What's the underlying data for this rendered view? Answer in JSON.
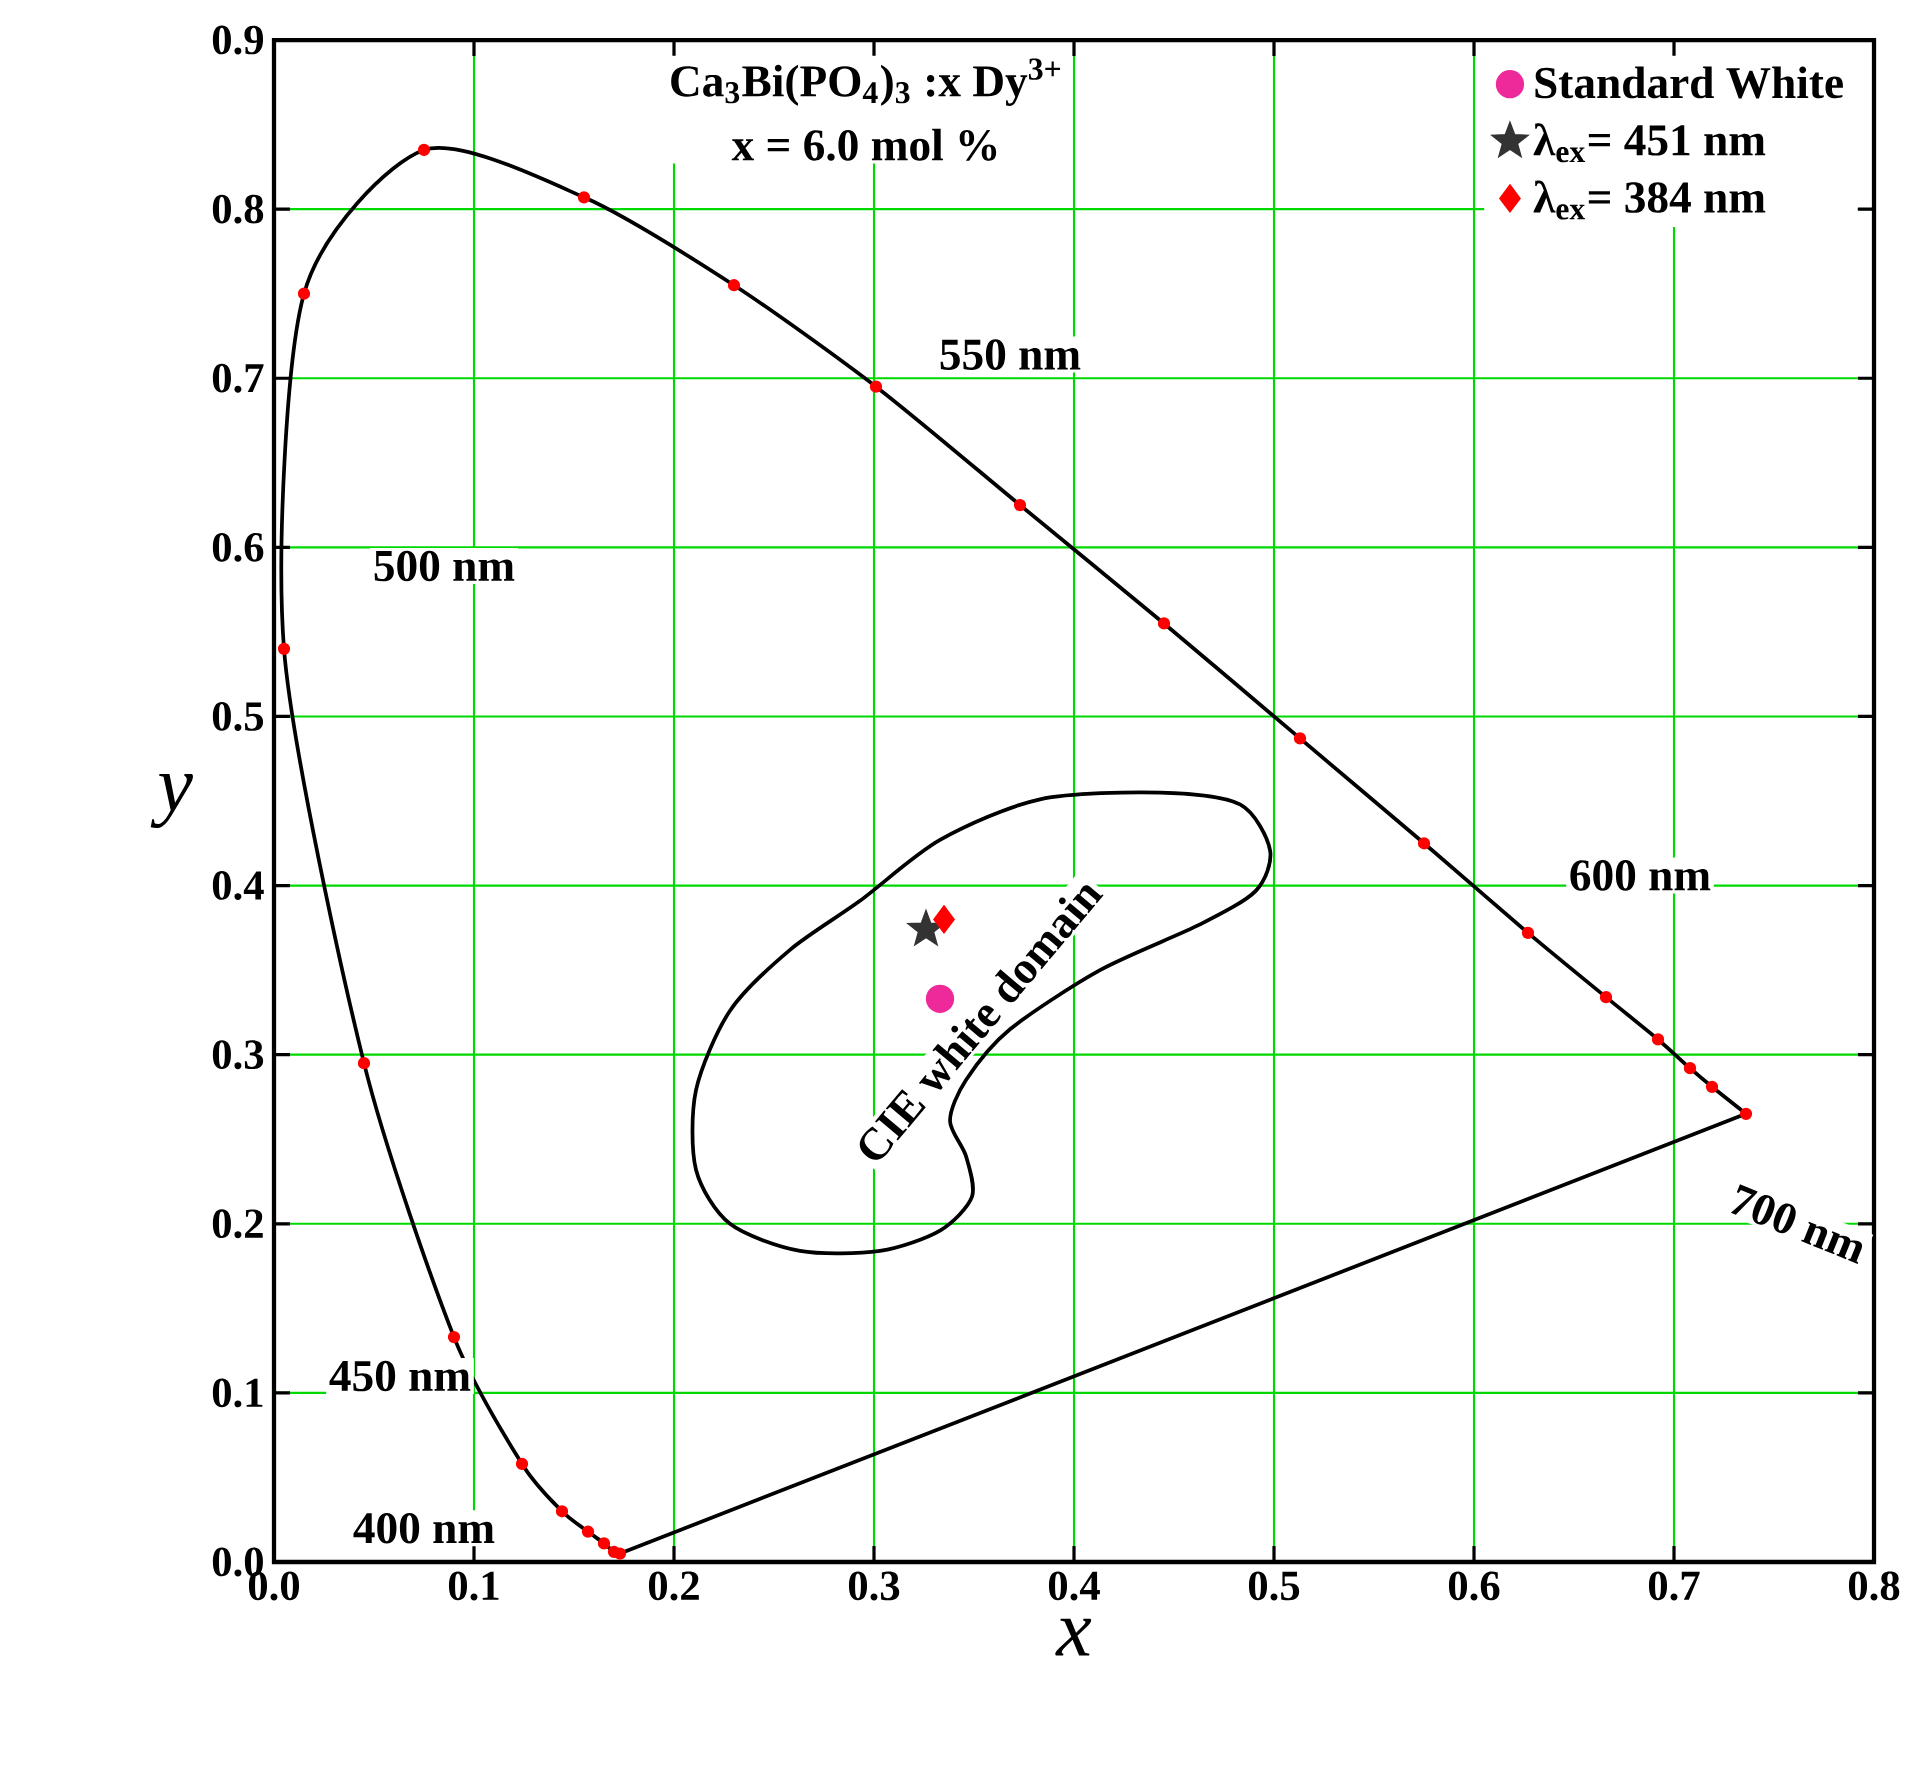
{
  "chart_data": {
    "type": "scatter",
    "xlabel": "x",
    "ylabel": "y",
    "xlim": [
      0,
      0.8
    ],
    "ylim": [
      0,
      0.9
    ],
    "xticks": [
      {
        "value": 0,
        "label": "0.0"
      },
      {
        "value": 0.1,
        "label": "0.1"
      },
      {
        "value": 0.2,
        "label": "0.2"
      },
      {
        "value": 0.3,
        "label": "0.3"
      },
      {
        "value": 0.4,
        "label": "0.4"
      },
      {
        "value": 0.5,
        "label": "0.5"
      },
      {
        "value": 0.6,
        "label": "0.6"
      },
      {
        "value": 0.7,
        "label": "0.7"
      },
      {
        "value": 0.8,
        "label": "0.8"
      }
    ],
    "yticks": [
      {
        "value": 0,
        "label": "0.0"
      },
      {
        "value": 0.1,
        "label": "0.1"
      },
      {
        "value": 0.2,
        "label": "0.2"
      },
      {
        "value": 0.3,
        "label": "0.3"
      },
      {
        "value": 0.4,
        "label": "0.4"
      },
      {
        "value": 0.5,
        "label": "0.5"
      },
      {
        "value": 0.6,
        "label": "0.6"
      },
      {
        "value": 0.7,
        "label": "0.7"
      },
      {
        "value": 0.8,
        "label": "0.8"
      },
      {
        "value": 0.9,
        "label": "0.9"
      }
    ],
    "grid": true,
    "legend": "top right",
    "series": [
      {
        "color": "#ff0000",
        "marker": "circle",
        "x": [
          0.173,
          0.17,
          0.165,
          0.157,
          0.144,
          0.124,
          0.09,
          0.045,
          0.005,
          0.015,
          0.075,
          0.155,
          0.23,
          0.301,
          0.373,
          0.445,
          0.513,
          0.575,
          0.627,
          0.666,
          0.692,
          0.708,
          0.719,
          0.736
        ],
        "values": [
          0.005,
          0.006,
          0.011,
          0.018,
          0.03,
          0.058,
          0.133,
          0.295,
          0.54,
          0.75,
          0.835,
          0.807,
          0.755,
          0.695,
          0.625,
          0.555,
          0.487,
          0.425,
          0.372,
          0.334,
          0.309,
          0.292,
          0.281,
          0.265
        ]
      },
      {
        "name": "Standard White",
        "color": "#ee2a9a",
        "marker": "circle",
        "x": [
          0.333
        ],
        "values": [
          0.333
        ]
      },
      {
        "name": "λ$_{ex}$= 451 nm",
        "color": "#333333",
        "marker": "star",
        "x": [
          0.326
        ],
        "values": [
          0.374
        ]
      },
      {
        "name": "λ$_{ex}$= 384 nm",
        "color": "#ff0000",
        "marker": "diamond",
        "x": [
          0.335
        ],
        "values": [
          0.38
        ]
      }
    ],
    "annotations": [
      "Ca$_{3}$Bi(PO$_{4}$)$_{3}$ :x Dy$^{3+}$",
      "x = 6.0 mol %",
      "500 nm",
      "550 nm",
      "600 nm",
      "700 nm",
      "450 nm",
      "400 nm",
      "CIE white domain"
    ]
  }
}
